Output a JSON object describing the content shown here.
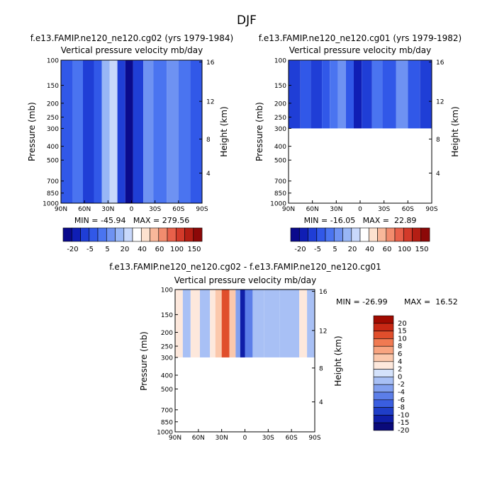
{
  "figure": {
    "season": "DJF",
    "colors": {
      "cbar_full": [
        "#0a0a8c",
        "#0f1eb4",
        "#1f3ed6",
        "#3158e8",
        "#4a74f0",
        "#6e92f2",
        "#98b6f6",
        "#c8d8fb",
        "#ffffff",
        "#fde2cf",
        "#f8b89a",
        "#f28c6e",
        "#e8604a",
        "#d33a2a",
        "#b41e14",
        "#8c0808"
      ],
      "cbar_diff": [
        "#0a0a7a",
        "#0f1ea8",
        "#1f3ec8",
        "#3a5ee0",
        "#5c7ee8",
        "#82a0ef",
        "#a8c0f5",
        "#d4e2fb",
        "#fde8dc",
        "#fbc8ac",
        "#f8a480",
        "#f07a52",
        "#e04e2c",
        "#c82814",
        "#a00a00"
      ],
      "bg_blue": "#3a64e6",
      "missing": "#ffffff"
    }
  },
  "chart_data": [
    {
      "type": "heatmap",
      "title": "f.e13.FAMIP.ne120_ne120.cg02 (yrs 1979-1984)",
      "subtitle": "Vertical pressure velocity  mb/day",
      "xlabel": "",
      "ylabel": "Pressure (mb)",
      "y2label": "Height (km)",
      "x_ticks": [
        "90N",
        "60N",
        "30N",
        "0",
        "30S",
        "60S",
        "90S"
      ],
      "y_ticks": [
        "100",
        "150",
        "200",
        "250",
        "300",
        "400",
        "500",
        "700",
        "850",
        "1000"
      ],
      "y2_ticks": [
        "16",
        "12",
        "8",
        "4"
      ],
      "stats": "MIN = -45.94   MAX = 279.56",
      "min": -45.94,
      "max": 279.56,
      "colorbar_labels": [
        "-20",
        "-5",
        "5",
        "20",
        "40",
        "60",
        "100",
        "150"
      ],
      "data_top_mb": 100,
      "data_bottom_mb": 1000,
      "columns": [
        {
          "lat_from": 90,
          "lat_to": 75,
          "level": -8
        },
        {
          "lat_from": 75,
          "lat_to": 62,
          "level": -6
        },
        {
          "lat_from": 62,
          "lat_to": 48,
          "level": -10
        },
        {
          "lat_from": 48,
          "lat_to": 38,
          "level": -8
        },
        {
          "lat_from": 38,
          "lat_to": 28,
          "level": -2
        },
        {
          "lat_from": 28,
          "lat_to": 18,
          "level": -1
        },
        {
          "lat_from": 18,
          "lat_to": 8,
          "level": -10
        },
        {
          "lat_from": 8,
          "lat_to": -2,
          "level": -20
        },
        {
          "lat_from": -2,
          "lat_to": -15,
          "level": -10
        },
        {
          "lat_from": -15,
          "lat_to": -28,
          "level": -4
        },
        {
          "lat_from": -28,
          "lat_to": -45,
          "level": -6
        },
        {
          "lat_from": -45,
          "lat_to": -60,
          "level": -3
        },
        {
          "lat_from": -60,
          "lat_to": -75,
          "level": -6
        },
        {
          "lat_from": -75,
          "lat_to": -90,
          "level": -8
        }
      ]
    },
    {
      "type": "heatmap",
      "title": "f.e13.FAMIP.ne120_ne120.cg01 (yrs 1979-1982)",
      "subtitle": "Vertical pressure velocity  mb/day",
      "xlabel": "",
      "ylabel": "Pressure (mb)",
      "y2label": "Height (km)",
      "x_ticks": [
        "90N",
        "60N",
        "30N",
        "0",
        "30S",
        "60S",
        "90S"
      ],
      "y_ticks": [
        "100",
        "150",
        "200",
        "250",
        "300",
        "400",
        "500",
        "700",
        "850",
        "1000"
      ],
      "y2_ticks": [
        "16",
        "12",
        "8",
        "4"
      ],
      "stats": "MIN = -16.05   MAX =  22.89",
      "min": -16.05,
      "max": 22.89,
      "colorbar_labels": [
        "-20",
        "-5",
        "5",
        "20",
        "40",
        "60",
        "100",
        "150"
      ],
      "data_top_mb": 100,
      "data_bottom_mb": 300,
      "columns": [
        {
          "lat_from": 90,
          "lat_to": 75,
          "level": -10
        },
        {
          "lat_from": 75,
          "lat_to": 62,
          "level": -8
        },
        {
          "lat_from": 62,
          "lat_to": 48,
          "level": -10
        },
        {
          "lat_from": 48,
          "lat_to": 38,
          "level": -8
        },
        {
          "lat_from": 38,
          "lat_to": 28,
          "level": -6
        },
        {
          "lat_from": 28,
          "lat_to": 18,
          "level": -3
        },
        {
          "lat_from": 18,
          "lat_to": 8,
          "level": -8
        },
        {
          "lat_from": 8,
          "lat_to": -2,
          "level": -15
        },
        {
          "lat_from": -2,
          "lat_to": -15,
          "level": -10
        },
        {
          "lat_from": -15,
          "lat_to": -28,
          "level": -6
        },
        {
          "lat_from": -28,
          "lat_to": -45,
          "level": -8
        },
        {
          "lat_from": -45,
          "lat_to": -60,
          "level": -4
        },
        {
          "lat_from": -60,
          "lat_to": -75,
          "level": -8
        },
        {
          "lat_from": -75,
          "lat_to": -90,
          "level": -10
        }
      ]
    },
    {
      "type": "heatmap",
      "title": "f.e13.FAMIP.ne120_ne120.cg02 - f.e13.FAMIP.ne120_ne120.cg01",
      "subtitle": "Vertical pressure velocity  mb/day",
      "xlabel": "",
      "ylabel": "Pressure (mb)",
      "y2label": "Height (km)",
      "x_ticks": [
        "90N",
        "60N",
        "30N",
        "0",
        "30S",
        "60S",
        "90S"
      ],
      "y_ticks": [
        "100",
        "150",
        "200",
        "250",
        "300",
        "400",
        "500",
        "700",
        "850",
        "1000"
      ],
      "y2_ticks": [
        "16",
        "12",
        "8",
        "4"
      ],
      "stats_min": "MIN = -26.99",
      "stats_max": "MAX =  16.52",
      "min": -26.99,
      "max": 16.52,
      "colorbar_labels": [
        "20",
        "15",
        "10",
        "8",
        "6",
        "4",
        "2",
        "0",
        "-2",
        "-4",
        "-6",
        "-8",
        "-10",
        "-15",
        "-20"
      ],
      "data_top_mb": 100,
      "data_bottom_mb": 300,
      "columns": [
        {
          "lat_from": 90,
          "lat_to": 80,
          "level": 2
        },
        {
          "lat_from": 80,
          "lat_to": 70,
          "level": -2
        },
        {
          "lat_from": 70,
          "lat_to": 58,
          "level": 2
        },
        {
          "lat_from": 58,
          "lat_to": 45,
          "level": -2
        },
        {
          "lat_from": 45,
          "lat_to": 38,
          "level": 2
        },
        {
          "lat_from": 38,
          "lat_to": 30,
          "level": 4
        },
        {
          "lat_from": 30,
          "lat_to": 20,
          "level": 10
        },
        {
          "lat_from": 20,
          "lat_to": 12,
          "level": 4
        },
        {
          "lat_from": 12,
          "lat_to": 6,
          "level": -4
        },
        {
          "lat_from": 6,
          "lat_to": 0,
          "level": -15
        },
        {
          "lat_from": 0,
          "lat_to": -10,
          "level": -6
        },
        {
          "lat_from": -10,
          "lat_to": -25,
          "level": -2
        },
        {
          "lat_from": -25,
          "lat_to": -45,
          "level": -2
        },
        {
          "lat_from": -45,
          "lat_to": -70,
          "level": -2
        },
        {
          "lat_from": -70,
          "lat_to": -80,
          "level": 2
        },
        {
          "lat_from": -80,
          "lat_to": -90,
          "level": -2
        }
      ]
    }
  ]
}
